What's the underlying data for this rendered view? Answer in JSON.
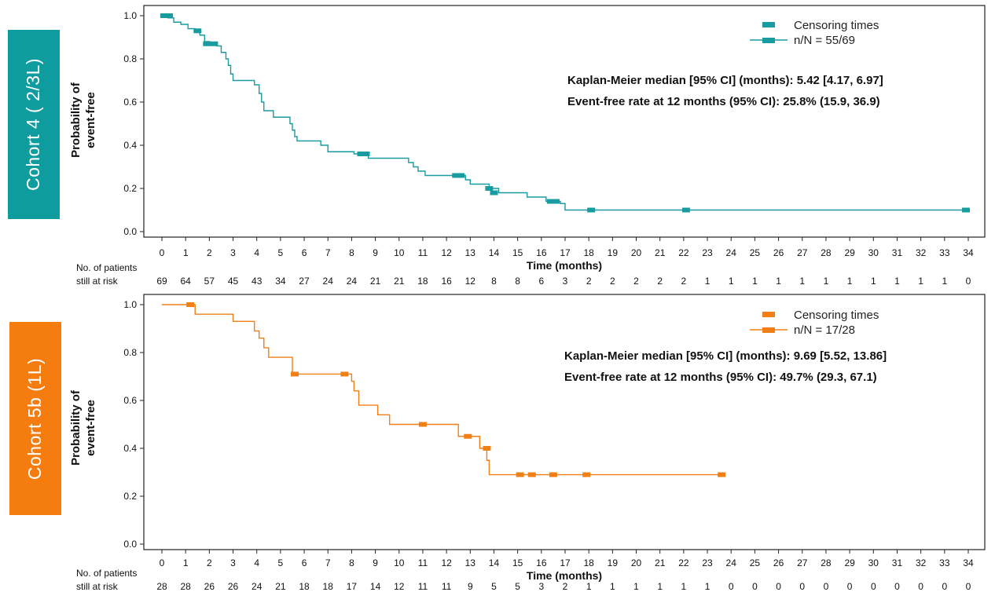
{
  "colors": {
    "cohort4": "#1a9ba0",
    "cohort5b": "#f07f16",
    "tag4": "#0f9c9e",
    "tag5b": "#f57c0e"
  },
  "chart_data": [
    {
      "type": "line",
      "cohort_label": "Cohort 4 ( 2/3L)",
      "ylabel_line1": "Probability of",
      "ylabel_line2": "event-free",
      "xlabel": "Time (months)",
      "xlim": [
        -0.8,
        34.8
      ],
      "ylim": [
        0,
        1.02
      ],
      "yticks": [
        "0.0",
        "0.2",
        "0.4",
        "0.6",
        "0.8",
        "1.0"
      ],
      "xticks": [
        "0",
        "1",
        "2",
        "3",
        "4",
        "5",
        "6",
        "7",
        "8",
        "9",
        "10",
        "11",
        "12",
        "13",
        "14",
        "15",
        "16",
        "17",
        "18",
        "19",
        "20",
        "21",
        "22",
        "23",
        "24",
        "25",
        "26",
        "27",
        "28",
        "29",
        "30",
        "31",
        "32",
        "33",
        "34"
      ],
      "legend": {
        "censor_label": "Censoring times",
        "n_label": "n/N = 55/69",
        "position": "top-right"
      },
      "stats": {
        "median": "Kaplan-Meier median [95% CI] (months): 5.42 [4.17, 6.97]",
        "rate": "Event-free rate at 12 months (95% CI): 25.8% (15.9, 36.9)"
      },
      "risk_header_line1": "No. of patients",
      "risk_header_line2": "still at risk",
      "at_risk": [
        "69",
        "64",
        "57",
        "45",
        "43",
        "34",
        "27",
        "24",
        "24",
        "21",
        "21",
        "18",
        "16",
        "12",
        "8",
        "8",
        "6",
        "3",
        "2",
        "2",
        "2",
        "2",
        "2",
        "1",
        "1",
        "1",
        "1",
        "1",
        "1",
        "1",
        "1",
        "1",
        "1",
        "1",
        "0"
      ],
      "series": [
        {
          "x": [
            0,
            0.25,
            0.5,
            0.8,
            1.1,
            1.4,
            1.6,
            1.8,
            2.0,
            2.3,
            2.5,
            2.7,
            2.8,
            2.9,
            3.0,
            3.9,
            4.1,
            4.2,
            4.3,
            4.7,
            5.4,
            5.5,
            5.6,
            5.7,
            6.7,
            7.0,
            8.1,
            8.7,
            10.4,
            10.6,
            10.8,
            11.1,
            11.6,
            12.8,
            13.0,
            13.8,
            14.2,
            15.4,
            16.2,
            16.8,
            17.0
          ],
          "y": [
            1.0,
            0.99,
            0.97,
            0.96,
            0.94,
            0.93,
            0.91,
            0.88,
            0.87,
            0.86,
            0.83,
            0.8,
            0.77,
            0.73,
            0.7,
            0.68,
            0.64,
            0.6,
            0.56,
            0.53,
            0.5,
            0.47,
            0.44,
            0.42,
            0.4,
            0.37,
            0.36,
            0.34,
            0.32,
            0.3,
            0.28,
            0.26,
            0.26,
            0.24,
            0.22,
            0.2,
            0.18,
            0.16,
            0.14,
            0.13,
            0.1
          ],
          "x_end": 34.0,
          "censor_x": [
            0.1,
            0.3,
            1.5,
            1.9,
            2.2,
            8.4,
            8.6,
            12.4,
            12.6,
            13.8,
            14.0,
            16.4,
            16.6,
            18.1,
            22.1,
            33.9
          ],
          "censor_y": [
            1.0,
            1.0,
            0.93,
            0.87,
            0.87,
            0.36,
            0.36,
            0.26,
            0.26,
            0.2,
            0.18,
            0.14,
            0.14,
            0.1,
            0.1,
            0.1
          ]
        }
      ]
    },
    {
      "type": "line",
      "cohort_label": "Cohort 5b (1L)",
      "ylabel_line1": "Probability of",
      "ylabel_line2": "event-free",
      "xlabel": "Time (months)",
      "xlim": [
        -0.8,
        34.8
      ],
      "ylim": [
        0,
        1.02
      ],
      "yticks": [
        "0.0",
        "0.2",
        "0.4",
        "0.6",
        "0.8",
        "1.0"
      ],
      "xticks": [
        "0",
        "1",
        "2",
        "3",
        "4",
        "5",
        "6",
        "7",
        "8",
        "9",
        "10",
        "11",
        "12",
        "13",
        "14",
        "15",
        "16",
        "17",
        "18",
        "19",
        "20",
        "21",
        "22",
        "23",
        "24",
        "25",
        "26",
        "27",
        "28",
        "29",
        "30",
        "31",
        "32",
        "33",
        "34"
      ],
      "legend": {
        "censor_label": "Censoring times",
        "n_label": "n/N = 17/28",
        "position": "top-right"
      },
      "stats": {
        "median": "Kaplan-Meier median [95% CI] (months): 9.69 [5.52, 13.86]",
        "rate": "Event-free rate at 12 months (95% CI): 49.7% (29.3, 67.1)"
      },
      "risk_header_line1": "No. of patients",
      "risk_header_line2": "still at risk",
      "at_risk": [
        "28",
        "28",
        "26",
        "26",
        "24",
        "21",
        "18",
        "18",
        "17",
        "14",
        "12",
        "11",
        "11",
        "9",
        "5",
        "5",
        "3",
        "2",
        "1",
        "1",
        "1",
        "1",
        "1",
        "1",
        "0",
        "0",
        "0",
        "0",
        "0",
        "0",
        "0",
        "0",
        "0",
        "0",
        "0"
      ],
      "series": [
        {
          "x": [
            0,
            1.4,
            3.0,
            3.9,
            4.1,
            4.3,
            4.5,
            5.5,
            7.8,
            8.0,
            8.1,
            8.3,
            9.1,
            9.6,
            12.5,
            13.4,
            13.7,
            13.8
          ],
          "y": [
            1.0,
            0.96,
            0.93,
            0.89,
            0.86,
            0.82,
            0.78,
            0.71,
            0.71,
            0.68,
            0.64,
            0.58,
            0.54,
            0.5,
            0.45,
            0.4,
            0.35,
            0.29
          ],
          "x_end": 23.6,
          "censor_x": [
            1.2,
            5.6,
            7.7,
            11.0,
            12.9,
            13.7,
            15.1,
            15.6,
            16.5,
            17.9,
            23.6
          ],
          "censor_y": [
            1.0,
            0.71,
            0.71,
            0.5,
            0.45,
            0.4,
            0.29,
            0.29,
            0.29,
            0.29,
            0.29
          ]
        }
      ]
    }
  ]
}
